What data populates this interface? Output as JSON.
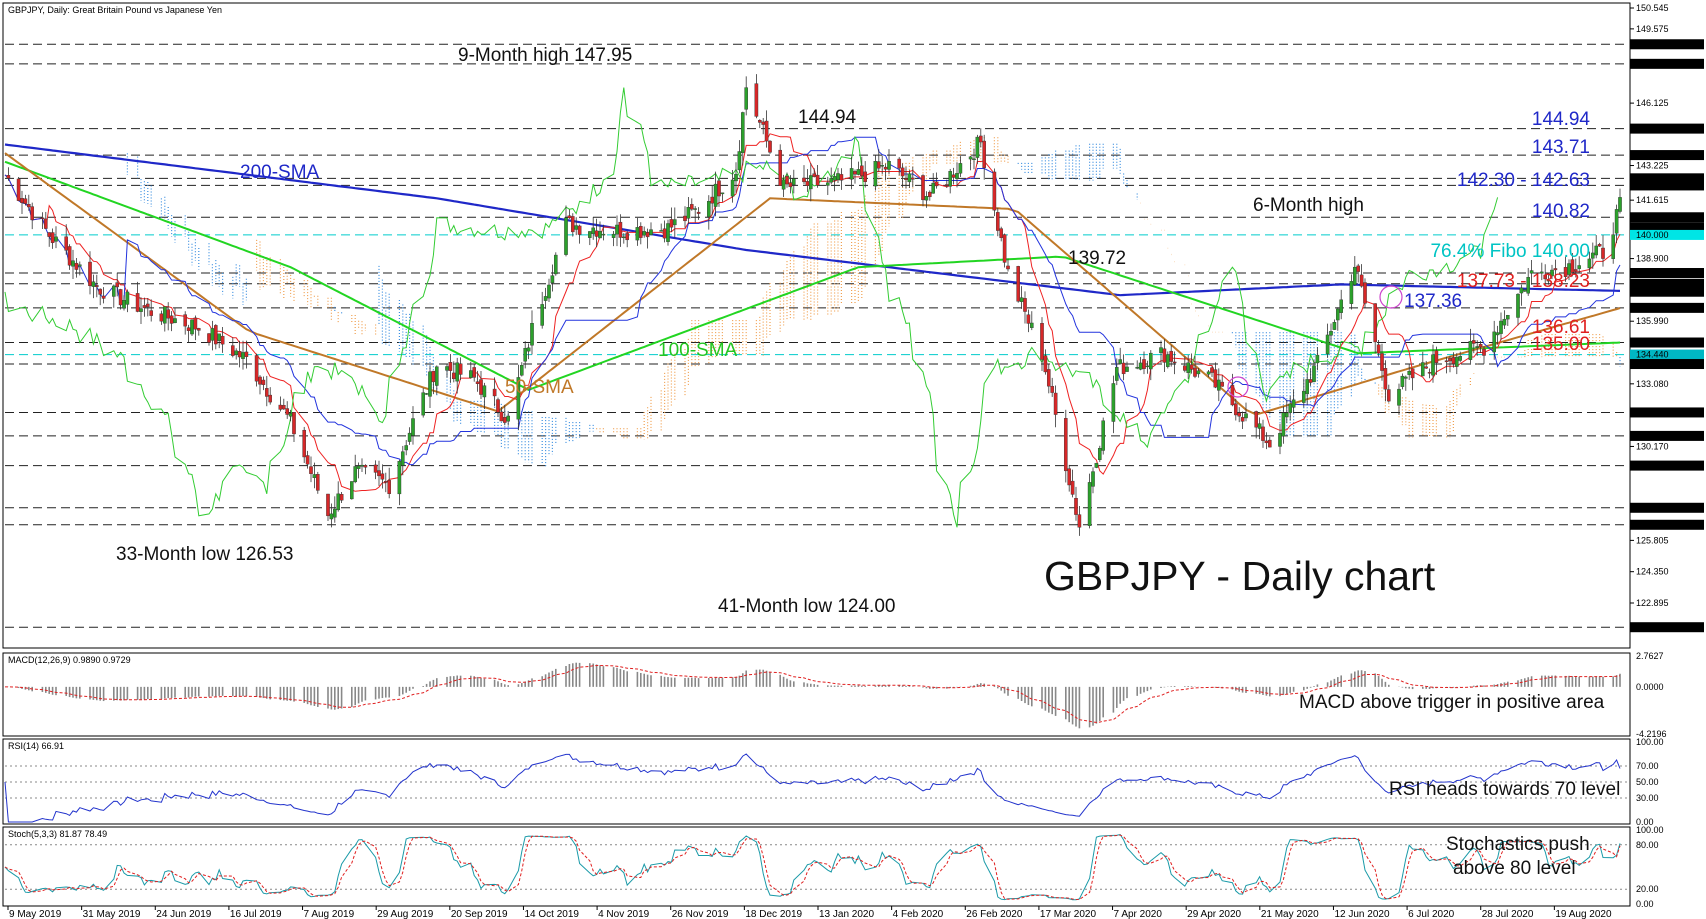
{
  "header": {
    "title": "GBPJPY, Daily:  Great Britain Pound vs Japanese Yen"
  },
  "chart_title": "GBPJPY - Daily chart",
  "price_axis": {
    "ticks": [
      "150.545",
      "149.575",
      "146.125",
      "143.225",
      "141.615",
      "138.900",
      "135.990",
      "133.080",
      "130.170",
      "127.260",
      "125.805",
      "124.350",
      "122.895"
    ],
    "highlighted": [
      {
        "label": "148.860",
        "value": 148.86,
        "color": "#000000"
      },
      {
        "label": "147.950",
        "value": 147.95,
        "color": "#000000"
      },
      {
        "label": "144.940",
        "value": 144.94,
        "color": "#000000"
      },
      {
        "label": "143.710",
        "value": 143.71,
        "color": "#000000"
      },
      {
        "label": "142.630",
        "value": 142.63,
        "color": "#000000"
      },
      {
        "label": "142.300",
        "value": 142.3,
        "color": "#000000"
      },
      {
        "label": "140.820",
        "value": 140.82,
        "color": "#000000"
      },
      {
        "label": "140.355",
        "value": 140.355,
        "color": "#000000"
      },
      {
        "label": "140.000",
        "value": 140.0,
        "color": "#00e5e5"
      },
      {
        "label": "138.230",
        "value": 138.23,
        "color": "#000000"
      },
      {
        "label": "137.730",
        "value": 137.73,
        "color": "#000000"
      },
      {
        "label": "137.360",
        "value": 137.36,
        "color": "#000000"
      },
      {
        "label": "136.610",
        "value": 136.61,
        "color": "#000000"
      },
      {
        "label": "135.000",
        "value": 135.0,
        "color": "#000000"
      },
      {
        "label": "134.440",
        "value": 134.44,
        "color": "#00b7c3"
      },
      {
        "label": "134.000",
        "value": 134.0,
        "color": "#000000"
      },
      {
        "label": "131.750",
        "value": 131.75,
        "color": "#000000"
      },
      {
        "label": "130.660",
        "value": 130.66,
        "color": "#000000"
      },
      {
        "label": "129.280",
        "value": 129.28,
        "color": "#000000"
      },
      {
        "label": "127.320",
        "value": 127.32,
        "color": "#000000"
      },
      {
        "label": "126.530",
        "value": 126.53,
        "color": "#000000"
      },
      {
        "label": "121.770",
        "value": 121.77,
        "color": "#000000"
      }
    ]
  },
  "annotations": {
    "high_9m": "9-Month high 147.95",
    "high_14494": "144.94",
    "sma200": "200-SMA",
    "sma100": "100-SMA",
    "sma50": "50-SMA",
    "low_33m": "33-Month low 126.53",
    "low_41m": "41-Month low 124.00",
    "high_6m": "6-Month high",
    "level_13972": "139.72",
    "lvl_14494": "144.94",
    "lvl_14371": "143.71",
    "lvl_14230": "142.30 - 142.63",
    "lvl_14082": "140.82",
    "lvl_fibo": "76.4% Fibo 140.00",
    "lvl_13773": "137.73 - 138.23",
    "lvl_13736": "137.36",
    "lvl_13661": "136.61",
    "lvl_13500": "135.00"
  },
  "macd": {
    "header": "MACD(12,26,9) 0.9890 0.9729",
    "ticks": [
      "2.7627",
      "0.0000",
      "-4.2196"
    ],
    "note": "MACD above trigger in positive area"
  },
  "rsi": {
    "header": "RSI(14) 66.91",
    "ticks": [
      "100.00",
      "70.00",
      "50.00",
      "30.00",
      "0.00"
    ],
    "note": "RSI heads towards 70 level"
  },
  "stoch": {
    "header": "Stoch(5,3,3) 81.87 78.49",
    "ticks": [
      "100.00",
      "80.00",
      "20.00",
      "0.00"
    ],
    "note_line1": "Stochastics push",
    "note_line2": "above 80 level"
  },
  "dates": [
    "9 May 2019",
    "31 May 2019",
    "24 Jun 2019",
    "16 Jul 2019",
    "7 Aug 2019",
    "29 Aug 2019",
    "20 Sep 2019",
    "14 Oct 2019",
    "4 Nov 2019",
    "26 Nov 2019",
    "18 Dec 2019",
    "13 Jan 2020",
    "4 Feb 2020",
    "26 Feb 2020",
    "17 Mar 2020",
    "7 Apr 2020",
    "29 Apr 2020",
    "21 May 2020",
    "12 Jun 2020",
    "6 Jul 2020",
    "28 Jul 2020",
    "19 Aug 2020"
  ],
  "colors": {
    "bull": "#2ca02c",
    "bear": "#d62728",
    "sma200": "#1f28c8",
    "sma100": "#22d522",
    "sma50": "#c07828",
    "tenkan": "#ee2222",
    "kijun": "#2233dd",
    "chikou": "#33cc33",
    "cloud_bull": "#f0a050",
    "cloud_bear": "#3a8ee0",
    "fibo": "#00cccc",
    "level_blue": "#1f28c8",
    "level_red": "#e02020"
  },
  "chart_data": {
    "type": "candlestick",
    "title": "GBPJPY - Daily chart",
    "x_range": [
      "2019-05-09",
      "2020-08-26"
    ],
    "ylim": [
      121.0,
      151.0
    ],
    "horizontal_levels": [
      148.86,
      147.95,
      144.94,
      143.71,
      142.63,
      142.3,
      140.82,
      140.0,
      138.23,
      137.73,
      136.61,
      135.0,
      134.44,
      134.0,
      131.75,
      130.66,
      129.28,
      127.32,
      126.53,
      121.77
    ],
    "close_path": [
      {
        "date": "2019-05-09",
        "value": 142.8
      },
      {
        "date": "2019-05-22",
        "value": 140.0
      },
      {
        "date": "2019-06-05",
        "value": 137.6
      },
      {
        "date": "2019-06-20",
        "value": 136.5
      },
      {
        "date": "2019-07-05",
        "value": 135.7
      },
      {
        "date": "2019-07-19",
        "value": 134.2
      },
      {
        "date": "2019-08-01",
        "value": 131.3
      },
      {
        "date": "2019-08-12",
        "value": 127.0
      },
      {
        "date": "2019-08-20",
        "value": 129.0
      },
      {
        "date": "2019-08-30",
        "value": 128.4
      },
      {
        "date": "2019-09-06",
        "value": 131.3
      },
      {
        "date": "2019-09-13",
        "value": 134.0
      },
      {
        "date": "2019-09-24",
        "value": 133.3
      },
      {
        "date": "2019-10-04",
        "value": 131.4
      },
      {
        "date": "2019-10-11",
        "value": 135.6
      },
      {
        "date": "2019-10-21",
        "value": 140.5
      },
      {
        "date": "2019-11-05",
        "value": 140.2
      },
      {
        "date": "2019-11-20",
        "value": 140.3
      },
      {
        "date": "2019-11-29",
        "value": 141.2
      },
      {
        "date": "2019-12-10",
        "value": 143.0
      },
      {
        "date": "2019-12-13",
        "value": 146.9
      },
      {
        "date": "2019-12-24",
        "value": 142.2
      },
      {
        "date": "2020-01-10",
        "value": 142.5
      },
      {
        "date": "2020-01-24",
        "value": 143.2
      },
      {
        "date": "2020-02-05",
        "value": 141.8
      },
      {
        "date": "2020-02-20",
        "value": 144.3
      },
      {
        "date": "2020-02-28",
        "value": 138.2
      },
      {
        "date": "2020-03-09",
        "value": 134.5
      },
      {
        "date": "2020-03-20",
        "value": 126.5
      },
      {
        "date": "2020-03-31",
        "value": 133.8
      },
      {
        "date": "2020-04-14",
        "value": 134.5
      },
      {
        "date": "2020-04-28",
        "value": 133.2
      },
      {
        "date": "2020-05-15",
        "value": 130.3
      },
      {
        "date": "2020-05-29",
        "value": 134.0
      },
      {
        "date": "2020-06-09",
        "value": 138.6
      },
      {
        "date": "2020-06-19",
        "value": 132.6
      },
      {
        "date": "2020-07-03",
        "value": 134.2
      },
      {
        "date": "2020-07-17",
        "value": 134.8
      },
      {
        "date": "2020-07-31",
        "value": 138.2
      },
      {
        "date": "2020-08-10",
        "value": 138.5
      },
      {
        "date": "2020-08-21",
        "value": 139.2
      },
      {
        "date": "2020-08-26",
        "value": 141.3
      }
    ],
    "sma200_path": [
      {
        "date": "2019-05-09",
        "value": 144.2
      },
      {
        "date": "2019-09-13",
        "value": 141.7
      },
      {
        "date": "2019-12-13",
        "value": 139.3
      },
      {
        "date": "2020-04-01",
        "value": 137.2
      },
      {
        "date": "2020-06-05",
        "value": 137.7
      },
      {
        "date": "2020-08-26",
        "value": 137.4
      }
    ],
    "sma100_path": [
      {
        "date": "2019-05-09",
        "value": 143.4
      },
      {
        "date": "2019-08-01",
        "value": 138.5
      },
      {
        "date": "2019-10-10",
        "value": 132.8
      },
      {
        "date": "2020-01-15",
        "value": 138.5
      },
      {
        "date": "2020-03-15",
        "value": 139.0
      },
      {
        "date": "2020-06-10",
        "value": 134.5
      },
      {
        "date": "2020-08-26",
        "value": 135.0
      }
    ],
    "sma50_path": [
      {
        "date": "2019-05-09",
        "value": 143.8
      },
      {
        "date": "2019-07-20",
        "value": 135.5
      },
      {
        "date": "2019-10-01",
        "value": 131.8
      },
      {
        "date": "2019-12-20",
        "value": 141.7
      },
      {
        "date": "2020-03-01",
        "value": 141.2
      },
      {
        "date": "2020-05-10",
        "value": 131.6
      },
      {
        "date": "2020-06-25",
        "value": 133.8
      },
      {
        "date": "2020-08-26",
        "value": 136.6
      }
    ],
    "rsi_last": 66.91,
    "macd_last": 0.989,
    "macd_signal_last": 0.9729,
    "stoch_k_last": 81.87,
    "stoch_d_last": 78.49
  }
}
